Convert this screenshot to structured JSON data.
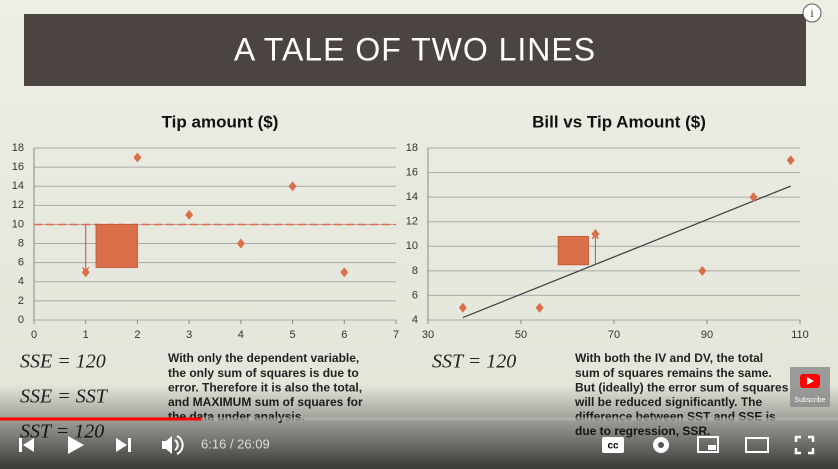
{
  "slide": {
    "title": "A TALE OF TWO LINES",
    "left_equations": [
      "SSE = 120",
      "SSE = SST",
      "SST = 120"
    ],
    "left_text": [
      "With only the dependent variable,",
      "the only sum of squares is due to",
      "error. Therefore it is also the total,",
      "and MAXIMUM sum of squares for",
      "the data under analysis."
    ],
    "right_equation": "SST = 120",
    "right_text": [
      "With both the IV and DV, the total",
      "sum of squares remains the same.",
      "But (ideally) the error sum of squares",
      "will be reduced significantly. The",
      "difference between SST and SSE is",
      "due to regression, SSR."
    ]
  },
  "chart_data": [
    {
      "type": "scatter",
      "title": "Tip amount ($)",
      "color": "#d9704a",
      "x": [
        1,
        2,
        3,
        4,
        5,
        6
      ],
      "values": [
        5,
        17,
        11,
        8,
        14,
        5
      ],
      "xlim": [
        0,
        7
      ],
      "xticks": [
        0,
        1,
        2,
        3,
        4,
        5,
        6,
        7
      ],
      "ylim": [
        0,
        18
      ],
      "yticks": [
        0,
        2,
        4,
        6,
        8,
        10,
        12,
        14,
        16,
        18
      ],
      "grid": true,
      "mean_line": 10,
      "arrow": {
        "x": 1,
        "y": [
          10,
          5
        ]
      },
      "box": {
        "x": [
          1.2,
          2
        ],
        "y": [
          5.5,
          10
        ]
      }
    },
    {
      "type": "scatter",
      "title": "Bill vs Tip Amount ($)",
      "color": "#d9704a",
      "x": [
        37.5,
        54,
        66,
        89,
        100,
        108
      ],
      "values": [
        5,
        5,
        11,
        8,
        14,
        17
      ],
      "xlim": [
        30,
        110
      ],
      "xticks": [
        30,
        50,
        70,
        90,
        110
      ],
      "ylim": [
        4,
        18
      ],
      "yticks": [
        4,
        6,
        8,
        10,
        12,
        14,
        16,
        18
      ],
      "grid": true,
      "fit_line": {
        "x": [
          37.5,
          108
        ],
        "y": [
          4.2,
          14.9
        ]
      },
      "arrow": {
        "x": 66,
        "y": [
          8.5,
          11
        ]
      },
      "box": {
        "x": [
          58,
          64.5
        ],
        "y": [
          8.5,
          10.8
        ]
      }
    }
  ],
  "player": {
    "time": "6:16 / 26:09",
    "subscribe": "Subscribe"
  }
}
